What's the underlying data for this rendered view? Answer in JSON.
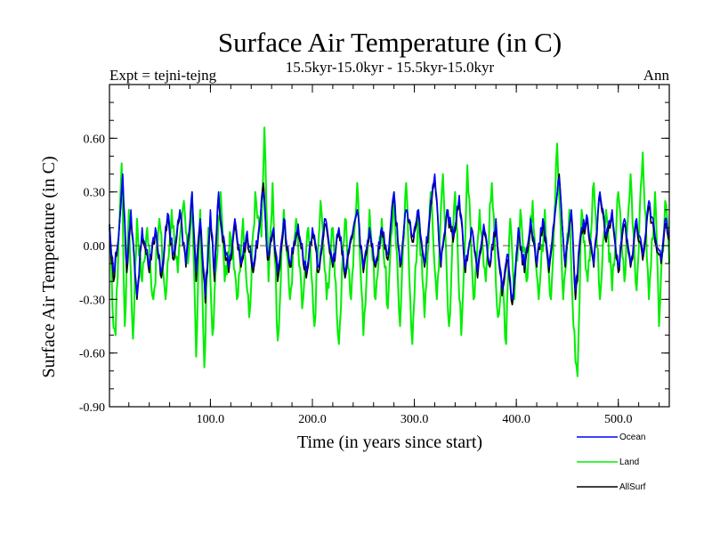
{
  "chart_data": {
    "type": "line",
    "title": "Surface Air Temperature (in C)",
    "subtitle_left": "Expt = tejni-tejng",
    "subtitle_center": "15.5kyr-15.0kyr - 15.5kyr-15.0kyr",
    "subtitle_right": "Ann",
    "xlabel": "Time (in years since start)",
    "ylabel": "Surface Air Temperature (in C)",
    "xlim": [
      1,
      550
    ],
    "ylim": [
      -0.9,
      0.9
    ],
    "xticks": [
      100,
      200,
      300,
      400,
      500
    ],
    "xtick_labels": [
      "100.0",
      "200.0",
      "300.0",
      "400.0",
      "500.0"
    ],
    "yticks": [
      -0.9,
      -0.6,
      -0.3,
      0.0,
      0.3,
      0.6
    ],
    "ytick_labels": [
      "-0.90",
      "-0.60",
      "-0.30",
      "0.00",
      "0.30",
      "0.60"
    ],
    "zero_line": "dashed",
    "legend_position": "bottom-right",
    "series": [
      {
        "name": "Ocean",
        "color": "#0000ff",
        "keypoints": [
          [
            1,
            0.12
          ],
          [
            5,
            -0.15
          ],
          [
            10,
            0.05
          ],
          [
            14,
            0.4
          ],
          [
            18,
            -0.1
          ],
          [
            22,
            0.2
          ],
          [
            28,
            -0.28
          ],
          [
            33,
            0.1
          ],
          [
            40,
            -0.12
          ],
          [
            46,
            0.1
          ],
          [
            52,
            -0.15
          ],
          [
            58,
            0.18
          ],
          [
            64,
            -0.05
          ],
          [
            70,
            0.2
          ],
          [
            76,
            -0.1
          ],
          [
            82,
            0.3
          ],
          [
            86,
            -0.15
          ],
          [
            90,
            0.15
          ],
          [
            95,
            -0.28
          ],
          [
            100,
            0.2
          ],
          [
            104,
            -0.15
          ],
          [
            108,
            0.3
          ],
          [
            112,
            0.05
          ],
          [
            118,
            -0.12
          ],
          [
            124,
            0.15
          ],
          [
            130,
            -0.1
          ],
          [
            136,
            0.08
          ],
          [
            142,
            -0.12
          ],
          [
            148,
            0.12
          ],
          [
            152,
            0.3
          ],
          [
            156,
            -0.05
          ],
          [
            162,
            0.1
          ],
          [
            166,
            -0.15
          ],
          [
            172,
            0.15
          ],
          [
            178,
            -0.1
          ],
          [
            186,
            0.12
          ],
          [
            194,
            -0.15
          ],
          [
            200,
            0.1
          ],
          [
            206,
            -0.12
          ],
          [
            212,
            0.15
          ],
          [
            220,
            -0.1
          ],
          [
            226,
            0.1
          ],
          [
            232,
            -0.15
          ],
          [
            238,
            0.05
          ],
          [
            244,
            0.2
          ],
          [
            250,
            -0.12
          ],
          [
            256,
            0.1
          ],
          [
            262,
            -0.1
          ],
          [
            268,
            0.1
          ],
          [
            274,
            -0.05
          ],
          [
            280,
            0.3
          ],
          [
            286,
            -0.1
          ],
          [
            292,
            0.2
          ],
          [
            298,
            0.05
          ],
          [
            304,
            0.2
          ],
          [
            310,
            -0.1
          ],
          [
            316,
            0.25
          ],
          [
            320,
            0.4
          ],
          [
            326,
            -0.1
          ],
          [
            332,
            0.2
          ],
          [
            338,
            0.05
          ],
          [
            344,
            0.28
          ],
          [
            350,
            -0.12
          ],
          [
            356,
            0.1
          ],
          [
            362,
            -0.15
          ],
          [
            368,
            0.12
          ],
          [
            374,
            -0.1
          ],
          [
            380,
            0.15
          ],
          [
            386,
            -0.25
          ],
          [
            392,
            -0.05
          ],
          [
            396,
            -0.3
          ],
          [
            402,
            0.1
          ],
          [
            408,
            -0.12
          ],
          [
            414,
            0.15
          ],
          [
            420,
            -0.1
          ],
          [
            426,
            0.15
          ],
          [
            432,
            -0.12
          ],
          [
            438,
            0.2
          ],
          [
            442,
            0.38
          ],
          [
            448,
            -0.1
          ],
          [
            454,
            0.2
          ],
          [
            458,
            -0.25
          ],
          [
            464,
            0.1
          ],
          [
            470,
            0.15
          ],
          [
            476,
            -0.1
          ],
          [
            482,
            0.3
          ],
          [
            488,
            0.05
          ],
          [
            494,
            0.2
          ],
          [
            500,
            -0.12
          ],
          [
            506,
            0.15
          ],
          [
            512,
            -0.1
          ],
          [
            518,
            0.15
          ],
          [
            524,
            -0.05
          ],
          [
            530,
            0.25
          ],
          [
            536,
            0.05
          ],
          [
            542,
            -0.08
          ],
          [
            546,
            0.15
          ],
          [
            550,
            0.05
          ]
        ]
      },
      {
        "name": "Land",
        "color": "#00ee00",
        "keypoints": [
          [
            1,
            0.12
          ],
          [
            4,
            -0.35
          ],
          [
            7,
            -0.5
          ],
          [
            10,
            0.05
          ],
          [
            13,
            0.46
          ],
          [
            16,
            -0.45
          ],
          [
            20,
            0.2
          ],
          [
            24,
            -0.52
          ],
          [
            28,
            0.15
          ],
          [
            33,
            -0.2
          ],
          [
            38,
            0.1
          ],
          [
            44,
            -0.3
          ],
          [
            50,
            0.15
          ],
          [
            56,
            -0.3
          ],
          [
            62,
            0.2
          ],
          [
            68,
            -0.15
          ],
          [
            74,
            0.25
          ],
          [
            78,
            -0.1
          ],
          [
            82,
            0.3
          ],
          [
            86,
            -0.62
          ],
          [
            90,
            0.2
          ],
          [
            94,
            -0.68
          ],
          [
            98,
            0.1
          ],
          [
            102,
            -0.5
          ],
          [
            106,
            -0.1
          ],
          [
            110,
            0.3
          ],
          [
            114,
            -0.2
          ],
          [
            120,
            0.05
          ],
          [
            126,
            -0.3
          ],
          [
            132,
            0.15
          ],
          [
            138,
            -0.4
          ],
          [
            144,
            0.3
          ],
          [
            150,
            0.05
          ],
          [
            153,
            0.66
          ],
          [
            157,
            -0.2
          ],
          [
            161,
            0.35
          ],
          [
            166,
            -0.53
          ],
          [
            172,
            0.2
          ],
          [
            178,
            -0.3
          ],
          [
            184,
            0.15
          ],
          [
            190,
            -0.35
          ],
          [
            196,
            0.1
          ],
          [
            202,
            -0.45
          ],
          [
            208,
            0.25
          ],
          [
            214,
            -0.3
          ],
          [
            220,
            0.1
          ],
          [
            226,
            -0.55
          ],
          [
            232,
            0.15
          ],
          [
            238,
            -0.3
          ],
          [
            244,
            0.35
          ],
          [
            250,
            -0.5
          ],
          [
            256,
            0.2
          ],
          [
            262,
            -0.3
          ],
          [
            268,
            0.15
          ],
          [
            274,
            -0.35
          ],
          [
            280,
            0.3
          ],
          [
            286,
            -0.45
          ],
          [
            292,
            0.35
          ],
          [
            298,
            -0.55
          ],
          [
            304,
            0.2
          ],
          [
            310,
            -0.4
          ],
          [
            316,
            0.3
          ],
          [
            322,
            -0.3
          ],
          [
            328,
            0.4
          ],
          [
            334,
            -0.45
          ],
          [
            340,
            0.3
          ],
          [
            346,
            -0.5
          ],
          [
            352,
            0.45
          ],
          [
            358,
            -0.3
          ],
          [
            364,
            0.2
          ],
          [
            370,
            -0.2
          ],
          [
            376,
            0.35
          ],
          [
            382,
            -0.4
          ],
          [
            386,
            -0.2
          ],
          [
            390,
            -0.55
          ],
          [
            394,
            0.15
          ],
          [
            398,
            -0.3
          ],
          [
            404,
            0.2
          ],
          [
            410,
            -0.2
          ],
          [
            416,
            0.25
          ],
          [
            422,
            -0.3
          ],
          [
            428,
            0.2
          ],
          [
            434,
            -0.3
          ],
          [
            440,
            0.57
          ],
          [
            446,
            -0.3
          ],
          [
            452,
            0.2
          ],
          [
            456,
            -0.45
          ],
          [
            460,
            -0.73
          ],
          [
            464,
            0.2
          ],
          [
            470,
            -0.2
          ],
          [
            476,
            0.35
          ],
          [
            482,
            -0.3
          ],
          [
            488,
            0.2
          ],
          [
            494,
            -0.25
          ],
          [
            500,
            0.3
          ],
          [
            506,
            -0.2
          ],
          [
            512,
            0.4
          ],
          [
            518,
            -0.25
          ],
          [
            524,
            0.52
          ],
          [
            530,
            -0.3
          ],
          [
            536,
            0.3
          ],
          [
            540,
            -0.45
          ],
          [
            546,
            0.25
          ],
          [
            550,
            -0.1
          ]
        ]
      },
      {
        "name": "AllSurf",
        "color": "#000000",
        "keypoints": [
          [
            1,
            0.1
          ],
          [
            5,
            -0.2
          ],
          [
            10,
            0.05
          ],
          [
            14,
            0.38
          ],
          [
            18,
            -0.15
          ],
          [
            22,
            0.18
          ],
          [
            28,
            -0.3
          ],
          [
            33,
            0.08
          ],
          [
            40,
            -0.15
          ],
          [
            46,
            0.08
          ],
          [
            52,
            -0.18
          ],
          [
            58,
            0.15
          ],
          [
            64,
            -0.08
          ],
          [
            70,
            0.18
          ],
          [
            76,
            -0.12
          ],
          [
            82,
            0.28
          ],
          [
            86,
            -0.2
          ],
          [
            90,
            0.12
          ],
          [
            95,
            -0.32
          ],
          [
            100,
            0.18
          ],
          [
            104,
            -0.2
          ],
          [
            108,
            0.28
          ],
          [
            112,
            0.02
          ],
          [
            118,
            -0.15
          ],
          [
            124,
            0.12
          ],
          [
            130,
            -0.12
          ],
          [
            136,
            0.05
          ],
          [
            142,
            -0.15
          ],
          [
            148,
            0.1
          ],
          [
            152,
            0.35
          ],
          [
            156,
            -0.08
          ],
          [
            162,
            0.08
          ],
          [
            166,
            -0.2
          ],
          [
            172,
            0.12
          ],
          [
            178,
            -0.12
          ],
          [
            186,
            0.1
          ],
          [
            194,
            -0.18
          ],
          [
            200,
            0.08
          ],
          [
            206,
            -0.15
          ],
          [
            212,
            0.12
          ],
          [
            220,
            -0.12
          ],
          [
            226,
            0.08
          ],
          [
            232,
            -0.18
          ],
          [
            238,
            0.03
          ],
          [
            244,
            0.2
          ],
          [
            250,
            -0.15
          ],
          [
            256,
            0.08
          ],
          [
            262,
            -0.12
          ],
          [
            268,
            0.08
          ],
          [
            274,
            -0.08
          ],
          [
            280,
            0.28
          ],
          [
            286,
            -0.12
          ],
          [
            292,
            0.2
          ],
          [
            298,
            0.02
          ],
          [
            304,
            0.18
          ],
          [
            310,
            -0.12
          ],
          [
            316,
            0.22
          ],
          [
            320,
            0.38
          ],
          [
            326,
            -0.12
          ],
          [
            332,
            0.18
          ],
          [
            338,
            0.02
          ],
          [
            344,
            0.26
          ],
          [
            350,
            -0.15
          ],
          [
            356,
            0.1
          ],
          [
            362,
            -0.18
          ],
          [
            368,
            0.1
          ],
          [
            374,
            -0.12
          ],
          [
            380,
            0.12
          ],
          [
            386,
            -0.28
          ],
          [
            392,
            -0.08
          ],
          [
            396,
            -0.33
          ],
          [
            402,
            0.08
          ],
          [
            408,
            -0.15
          ],
          [
            414,
            0.12
          ],
          [
            420,
            -0.12
          ],
          [
            426,
            0.12
          ],
          [
            432,
            -0.15
          ],
          [
            438,
            0.18
          ],
          [
            442,
            0.4
          ],
          [
            448,
            -0.12
          ],
          [
            454,
            0.18
          ],
          [
            458,
            -0.3
          ],
          [
            464,
            0.08
          ],
          [
            470,
            0.12
          ],
          [
            476,
            -0.12
          ],
          [
            482,
            0.28
          ],
          [
            488,
            0.02
          ],
          [
            494,
            0.18
          ],
          [
            500,
            -0.15
          ],
          [
            506,
            0.12
          ],
          [
            512,
            -0.12
          ],
          [
            518,
            0.12
          ],
          [
            524,
            -0.08
          ],
          [
            530,
            0.22
          ],
          [
            536,
            0.02
          ],
          [
            542,
            -0.1
          ],
          [
            546,
            0.12
          ],
          [
            550,
            0.03
          ]
        ]
      }
    ]
  }
}
